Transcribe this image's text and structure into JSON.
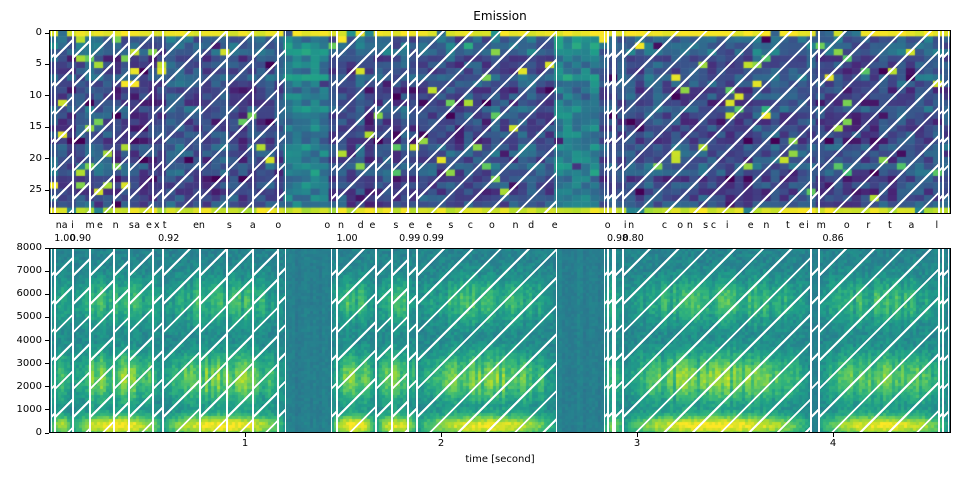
{
  "chart_data": [
    {
      "type": "heatmap",
      "title": "Emission",
      "xlabel": "",
      "ylabel": "",
      "y_ticks": [
        0,
        5,
        10,
        15,
        20,
        25
      ],
      "ylim": [
        28.5,
        -0.5
      ],
      "xlim": [
        0,
        4.6
      ],
      "colormap": "viridis",
      "legend": "none",
      "grid": false,
      "content": "Frame-wise CTC emission probabilities (token index vs. time). Top blank-token row and bottom row are saturated yellow; aligned character segments overlaid as white '/' hatched spans with white vertical boundaries."
    },
    {
      "type": "heatmap",
      "title": "",
      "xlabel": "time [second]",
      "ylabel": "",
      "y_ticks": [
        0,
        1000,
        2000,
        3000,
        4000,
        5000,
        6000,
        7000,
        8000
      ],
      "x_ticks": [
        1,
        2,
        3,
        4
      ],
      "ylim": [
        0,
        8000
      ],
      "xlim": [
        0,
        4.6
      ],
      "colormap": "viridis",
      "legend": "none",
      "grid": false,
      "content": "Speech spectrogram (frequency in Hz vs. time in seconds) with the same aligned character segments overlaid as white '/' hatched spans."
    }
  ],
  "alignment": {
    "transcript": "na imensa extensao onde se esconde o inconsciente imortal",
    "chars": [
      {
        "c": "n",
        "t": 0.05
      },
      {
        "c": "a",
        "t": 0.08
      },
      {
        "c": "i",
        "t": 0.12
      },
      {
        "c": "m",
        "t": 0.21
      },
      {
        "c": "e",
        "t": 0.26
      },
      {
        "c": "n",
        "t": 0.34
      },
      {
        "c": "s",
        "t": 0.42
      },
      {
        "c": "a",
        "t": 0.45
      },
      {
        "c": "e",
        "t": 0.51
      },
      {
        "c": "x",
        "t": 0.55
      },
      {
        "c": "t",
        "t": 0.59
      },
      {
        "c": "e",
        "t": 0.75
      },
      {
        "c": "n",
        "t": 0.78
      },
      {
        "c": "s",
        "t": 0.92
      },
      {
        "c": "a",
        "t": 1.04
      },
      {
        "c": "o",
        "t": 1.17
      },
      {
        "c": "o",
        "t": 1.42
      },
      {
        "c": "n",
        "t": 1.49
      },
      {
        "c": "d",
        "t": 1.59
      },
      {
        "c": "e",
        "t": 1.65
      },
      {
        "c": "s",
        "t": 1.77
      },
      {
        "c": "e",
        "t": 1.85
      },
      {
        "c": "e",
        "t": 1.94
      },
      {
        "c": "s",
        "t": 2.05
      },
      {
        "c": "c",
        "t": 2.15
      },
      {
        "c": "o",
        "t": 2.26
      },
      {
        "c": "n",
        "t": 2.38
      },
      {
        "c": "d",
        "t": 2.46
      },
      {
        "c": "e",
        "t": 2.58
      },
      {
        "c": "o",
        "t": 2.85
      },
      {
        "c": "i",
        "t": 2.94
      },
      {
        "c": "n",
        "t": 2.97
      },
      {
        "c": "c",
        "t": 3.14
      },
      {
        "c": "o",
        "t": 3.22
      },
      {
        "c": "n",
        "t": 3.27
      },
      {
        "c": "s",
        "t": 3.35
      },
      {
        "c": "c",
        "t": 3.39
      },
      {
        "c": "i",
        "t": 3.46
      },
      {
        "c": "e",
        "t": 3.58
      },
      {
        "c": "n",
        "t": 3.66
      },
      {
        "c": "t",
        "t": 3.77
      },
      {
        "c": "e",
        "t": 3.84
      },
      {
        "c": "i",
        "t": 3.87
      },
      {
        "c": "m",
        "t": 3.94
      },
      {
        "c": "o",
        "t": 4.07
      },
      {
        "c": "r",
        "t": 4.18
      },
      {
        "c": "t",
        "t": 4.29
      },
      {
        "c": "a",
        "t": 4.4
      },
      {
        "c": "l",
        "t": 4.53
      }
    ],
    "word_scores": [
      {
        "word": "na",
        "score": "1.00",
        "t": 0.05
      },
      {
        "word": "imensa",
        "score": "0.90",
        "t": 0.13
      },
      {
        "word": "extensao",
        "score": "0.92",
        "t": 0.58
      },
      {
        "word": "onde",
        "score": "1.00",
        "t": 1.49
      },
      {
        "word": "se",
        "score": "0.99",
        "t": 1.81
      },
      {
        "word": "esconde",
        "score": "0.99",
        "t": 1.93
      },
      {
        "word": "o",
        "score": "0.98",
        "t": 2.87
      },
      {
        "word": "inconsciente",
        "score": "0.80",
        "t": 2.95
      },
      {
        "word": "imortal",
        "score": "0.86",
        "t": 3.97
      }
    ],
    "segment_spans": [
      [
        0.01,
        0.03
      ],
      [
        0.03,
        0.12
      ],
      [
        0.12,
        0.21
      ],
      [
        0.21,
        0.33
      ],
      [
        0.33,
        0.41
      ],
      [
        0.41,
        0.53
      ],
      [
        0.53,
        0.58
      ],
      [
        0.58,
        0.77
      ],
      [
        0.77,
        0.91
      ],
      [
        0.91,
        1.04
      ],
      [
        1.04,
        1.17
      ],
      [
        1.17,
        1.21
      ],
      [
        1.44,
        1.47
      ],
      [
        1.47,
        1.67
      ],
      [
        1.67,
        1.75
      ],
      [
        1.75,
        1.83
      ],
      [
        1.83,
        1.88
      ],
      [
        1.88,
        2.59
      ],
      [
        2.83,
        2.85
      ],
      [
        2.85,
        2.88
      ],
      [
        2.88,
        2.89
      ],
      [
        2.89,
        2.93
      ],
      [
        2.93,
        3.89
      ],
      [
        3.89,
        3.93
      ],
      [
        3.93,
        4.54
      ],
      [
        4.54,
        4.56
      ],
      [
        4.56,
        4.59
      ]
    ],
    "words": [
      {
        "word": "na",
        "t0": 0.01,
        "t1": 0.12
      },
      {
        "word": "imensa",
        "t0": 0.12,
        "t1": 0.58
      },
      {
        "word": "extensao",
        "t0": 0.58,
        "t1": 1.21
      },
      {
        "word": "onde",
        "t0": 1.44,
        "t1": 1.67
      },
      {
        "word": "se",
        "t0": 1.67,
        "t1": 1.88
      },
      {
        "word": "esconde",
        "t0": 1.88,
        "t1": 2.59
      },
      {
        "word": "o",
        "t0": 2.83,
        "t1": 2.93
      },
      {
        "word": "inconsciente",
        "t0": 2.93,
        "t1": 3.89
      },
      {
        "word": "imortal",
        "t0": 3.93,
        "t1": 4.59
      }
    ]
  },
  "colors": {
    "hatch": "#ffffff",
    "spine": "#000000",
    "text": "#000000",
    "viridis_anchors": [
      "#440154",
      "#482878",
      "#3e4a89",
      "#31688e",
      "#26828e",
      "#1f9e89",
      "#35b779",
      "#6ece58",
      "#b5de2b",
      "#fde725"
    ]
  }
}
